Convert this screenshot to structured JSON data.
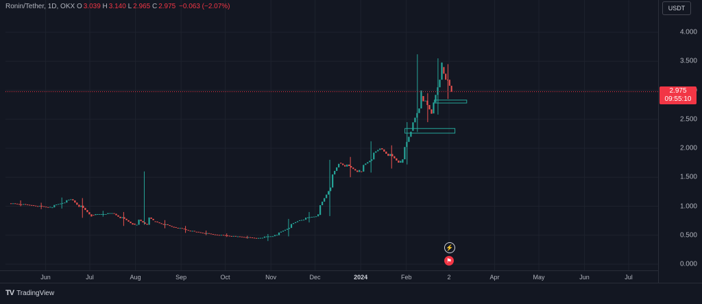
{
  "header": {
    "symbol": "Ronin/Tether, 1D, OKX",
    "open_label": "O",
    "open": "3.039",
    "high_label": "H",
    "high": "3.140",
    "low_label": "L",
    "low": "2.965",
    "close_label": "C",
    "close": "2.975",
    "change": "−0.063 (−2.07%)"
  },
  "price_axis": {
    "currency": "USDT",
    "ticks": [
      "4.000",
      "3.500",
      "3.000",
      "2.500",
      "2.000",
      "1.500",
      "1.000",
      "0.500",
      "0.000"
    ]
  },
  "last_price": {
    "price": "2.975",
    "countdown": "09:55:10"
  },
  "time_axis": {
    "labels": [
      "Jun",
      "Jul",
      "Aug",
      "Sep",
      "Oct",
      "Nov",
      "Dec",
      "2024",
      "Feb",
      "2",
      "Apr",
      "May",
      "Jun",
      "Jul"
    ]
  },
  "footer": {
    "brand": "TradingView"
  },
  "colors": {
    "up": "#26a69a",
    "down": "#ef5350",
    "background": "#131722",
    "grid": "#1e222d",
    "price_line": "#f23645",
    "zone": "#26a69a"
  },
  "chart_data": {
    "type": "candlestick",
    "title": "Ronin/Tether, 1D, OKX",
    "ylim": [
      0,
      4.2
    ],
    "grid": true,
    "price_line": 2.975,
    "candles": [
      {
        "date": "2023-05-08",
        "open": 1.05,
        "high": 1.1,
        "low": 1.0,
        "close": 1.02
      },
      {
        "date": "2023-05-22",
        "open": 1.02,
        "high": 1.06,
        "low": 0.95,
        "close": 0.98
      },
      {
        "date": "2023-06-05",
        "open": 0.98,
        "high": 1.15,
        "low": 0.96,
        "close": 1.12
      },
      {
        "date": "2023-06-19",
        "open": 1.12,
        "high": 1.14,
        "low": 0.8,
        "close": 0.85
      },
      {
        "date": "2023-07-03",
        "open": 0.85,
        "high": 0.92,
        "low": 0.82,
        "close": 0.88
      },
      {
        "date": "2023-07-17",
        "open": 0.88,
        "high": 0.9,
        "low": 0.66,
        "close": 0.7
      },
      {
        "date": "2023-07-31",
        "open": 0.7,
        "high": 1.6,
        "low": 0.68,
        "close": 0.74
      },
      {
        "date": "2023-08-14",
        "open": 0.74,
        "high": 0.76,
        "low": 0.62,
        "close": 0.64
      },
      {
        "date": "2023-08-28",
        "open": 0.64,
        "high": 0.66,
        "low": 0.54,
        "close": 0.56
      },
      {
        "date": "2023-09-11",
        "open": 0.56,
        "high": 0.58,
        "low": 0.5,
        "close": 0.51
      },
      {
        "date": "2023-09-25",
        "open": 0.51,
        "high": 0.53,
        "low": 0.47,
        "close": 0.48
      },
      {
        "date": "2023-10-09",
        "open": 0.48,
        "high": 0.49,
        "low": 0.44,
        "close": 0.45
      },
      {
        "date": "2023-10-23",
        "open": 0.45,
        "high": 0.52,
        "low": 0.4,
        "close": 0.5
      },
      {
        "date": "2023-11-06",
        "open": 0.5,
        "high": 0.78,
        "low": 0.48,
        "close": 0.75
      },
      {
        "date": "2023-11-20",
        "open": 0.75,
        "high": 0.9,
        "low": 0.72,
        "close": 0.85
      },
      {
        "date": "2023-12-04",
        "open": 0.85,
        "high": 1.8,
        "low": 0.83,
        "close": 1.75
      },
      {
        "date": "2023-12-18",
        "open": 1.75,
        "high": 1.85,
        "low": 1.5,
        "close": 1.6
      },
      {
        "date": "2024-01-01",
        "open": 1.6,
        "high": 2.12,
        "low": 1.58,
        "close": 2.0
      },
      {
        "date": "2024-01-15",
        "open": 2.0,
        "high": 2.05,
        "low": 1.65,
        "close": 1.75
      },
      {
        "date": "2024-01-29",
        "open": 1.75,
        "high": 2.45,
        "low": 1.72,
        "close": 2.3
      },
      {
        "date": "2024-02-05",
        "open": 2.3,
        "high": 3.62,
        "low": 2.28,
        "close": 2.9
      },
      {
        "date": "2024-02-12",
        "open": 2.9,
        "high": 2.95,
        "low": 2.45,
        "close": 2.6
      },
      {
        "date": "2024-02-19",
        "open": 2.6,
        "high": 3.55,
        "low": 2.58,
        "close": 3.4
      },
      {
        "date": "2024-02-26",
        "open": 3.4,
        "high": 3.45,
        "low": 2.85,
        "close": 2.975
      }
    ],
    "zones": [
      {
        "from": "2024-01-31",
        "to": "2024-03-05",
        "low": 2.26,
        "high": 2.34
      },
      {
        "from": "2024-02-20",
        "to": "2024-03-13",
        "low": 2.78,
        "high": 2.83
      }
    ]
  }
}
